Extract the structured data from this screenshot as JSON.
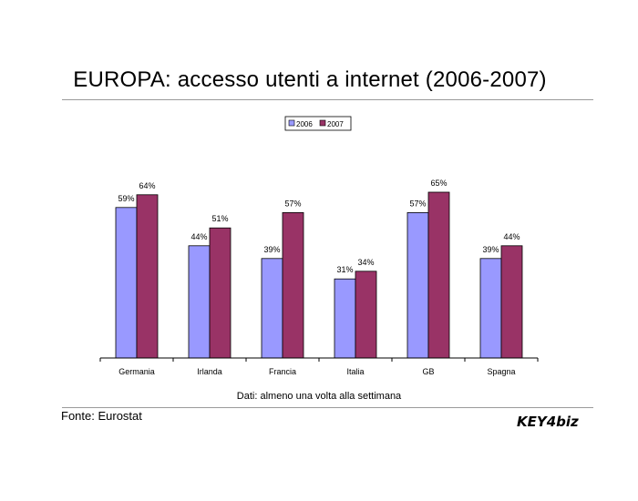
{
  "page": {
    "title": "EUROPA: accesso utenti a internet (2006-2007)",
    "note": "Dati: almeno una volta alla settimana",
    "source": "Fonte: Eurostat",
    "logo_text": "KEY4biz"
  },
  "colors": {
    "series_2006": "#9999ff",
    "series_2007": "#993366",
    "rule": "#9a9a9a",
    "logo": "#4a6fa8"
  },
  "chart_data": {
    "type": "bar",
    "categories": [
      "Germania",
      "Irlanda",
      "Francia",
      "Italia",
      "GB",
      "Spagna"
    ],
    "series": [
      {
        "name": "2006",
        "values": [
          59,
          44,
          39,
          31,
          57,
          39
        ],
        "labels": [
          "59%",
          "44%",
          "39%",
          "31%",
          "57%",
          "39%"
        ]
      },
      {
        "name": "2007",
        "values": [
          64,
          51,
          57,
          34,
          65,
          44
        ],
        "labels": [
          "64%",
          "51%",
          "57%",
          "34%",
          "65%",
          "44%"
        ]
      }
    ],
    "ylim": [
      0,
      70
    ],
    "grid": false,
    "legend": "top-center"
  }
}
